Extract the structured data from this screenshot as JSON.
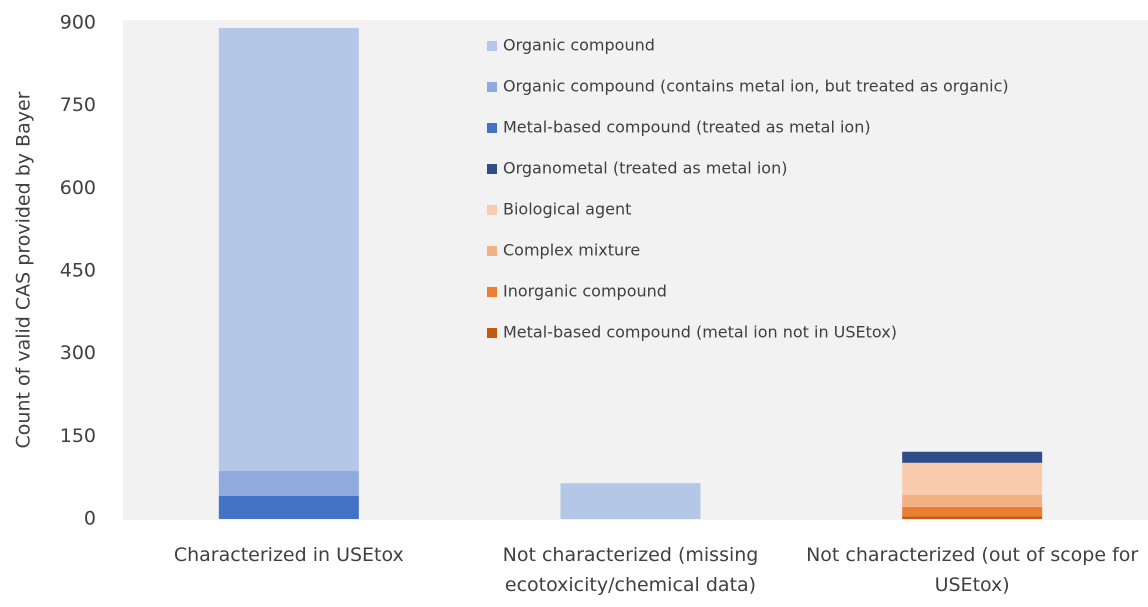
{
  "chart_data": {
    "type": "stacked_bar",
    "y_label": "Count of valid CAS provided by Bayer",
    "categories": [
      "Characterized in USEtox",
      "Not characterized (missing ecotoxicity/chemical data)",
      "Not characterized (out of scope for USEtox)"
    ],
    "series": [
      {
        "name": "Metal-based compound (metal ion not in USEtox)",
        "color": "#c55a11",
        "values": [
          0,
          0,
          5
        ]
      },
      {
        "name": "Inorganic compound",
        "color": "#ed7d31",
        "values": [
          0,
          0,
          17
        ]
      },
      {
        "name": "Complex mixture",
        "color": "#f4b183",
        "values": [
          0,
          0,
          22
        ]
      },
      {
        "name": "Biological agent",
        "color": "#f8cbad",
        "values": [
          0,
          0,
          58
        ]
      },
      {
        "name": "Organometal (treated as metal ion)",
        "color": "#2f4d8a",
        "values": [
          0,
          0,
          20
        ]
      },
      {
        "name": "Metal-based compound (treated as metal ion)",
        "color": "#4472c4",
        "values": [
          42,
          0,
          0
        ]
      },
      {
        "name": "Organic compound (contains metal ion, but treated as organic)",
        "color": "#8faadc",
        "values": [
          45,
          0,
          0
        ]
      },
      {
        "name": "Organic compound",
        "color": "#b4c7e7",
        "values": [
          804,
          65,
          0
        ]
      }
    ],
    "ylim": [
      0,
      900
    ],
    "yticks": [
      0,
      150,
      300,
      450,
      600,
      750,
      900
    ],
    "grid": false
  }
}
